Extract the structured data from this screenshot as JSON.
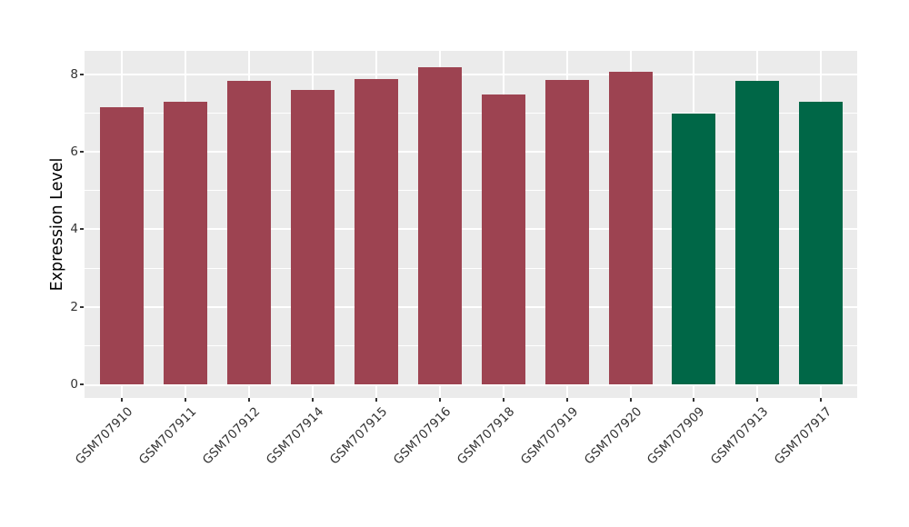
{
  "figure": {
    "background": "#FFFFFF",
    "panel_background": "#EBEBEB",
    "grid_color": "#FFFFFF",
    "text_color": "#333333",
    "axis_title_color": "#000000",
    "palette": {
      "maroon": "#9D4351",
      "green": "#006747"
    }
  },
  "chart_data": {
    "type": "bar",
    "title": "",
    "xlabel": "",
    "ylabel": "Expression Level",
    "categories": [
      "GSM707910",
      "GSM707911",
      "GSM707912",
      "GSM707914",
      "GSM707915",
      "GSM707916",
      "GSM707918",
      "GSM707919",
      "GSM707920",
      "GSM707909",
      "GSM707913",
      "GSM707917"
    ],
    "values": [
      7.16,
      7.28,
      7.82,
      7.59,
      7.88,
      8.17,
      7.47,
      7.85,
      8.06,
      6.99,
      7.84,
      7.3
    ],
    "bar_colors": [
      "#9D4351",
      "#9D4351",
      "#9D4351",
      "#9D4351",
      "#9D4351",
      "#9D4351",
      "#9D4351",
      "#9D4351",
      "#9D4351",
      "#006747",
      "#006747",
      "#006747"
    ],
    "y_major_ticks": [
      0,
      2,
      4,
      6,
      8
    ],
    "y_minor_ticks": [
      1,
      3,
      5,
      7
    ],
    "ylim": [
      -0.41,
      8.58
    ],
    "x_tick_angle": 45,
    "grid": "on",
    "legend_position": "none"
  }
}
